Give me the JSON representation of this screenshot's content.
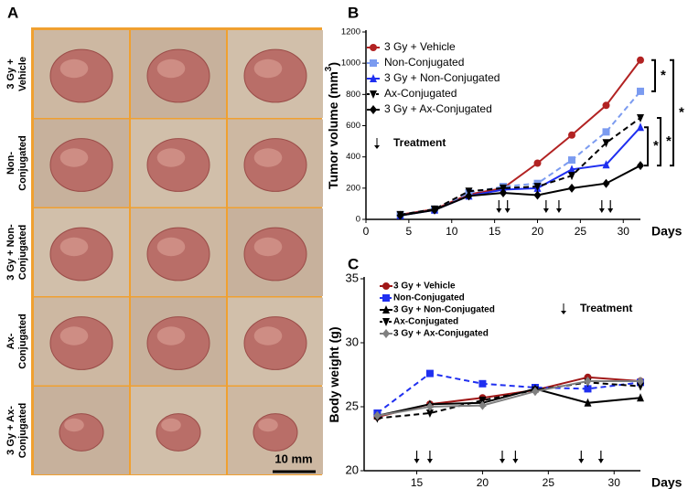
{
  "panel_a": {
    "label": "A",
    "row_labels": [
      [
        "3 Gy +",
        "Vehicle"
      ],
      [
        "Non-",
        "Conjugated"
      ],
      [
        "3 Gy + Non-",
        "Conjugated"
      ],
      [
        "Ax-",
        "Conjugated"
      ],
      [
        "3 Gy + Ax-",
        "Conjugated"
      ]
    ],
    "scale_bar": "10 mm"
  },
  "chart_data": [
    {
      "type": "line",
      "label": "B",
      "ylabel": [
        "Tumor volume (mm",
        "3",
        ")"
      ],
      "xlabel": "Days",
      "x": [
        4,
        8,
        12,
        16,
        20,
        24,
        28,
        32
      ],
      "xlim": [
        0,
        32
      ],
      "xticks": [
        0,
        5,
        10,
        15,
        20,
        25,
        30
      ],
      "ylim": [
        0,
        1200
      ],
      "yticks": [
        0,
        200,
        400,
        600,
        800,
        1000,
        1200
      ],
      "series": [
        {
          "name": "3 Gy + Vehicle",
          "color": "#b22222",
          "marker": "circle",
          "dashed": false,
          "values": [
            30,
            65,
            160,
            200,
            360,
            540,
            730,
            1020
          ]
        },
        {
          "name": "Non-Conjugated",
          "color": "#7b9bf0",
          "marker": "square",
          "dashed": true,
          "values": [
            30,
            65,
            170,
            210,
            230,
            380,
            560,
            820
          ]
        },
        {
          "name": "3 Gy + Non-Conjugated",
          "color": "#1f2ff0",
          "marker": "triangle",
          "dashed": false,
          "values": [
            25,
            60,
            150,
            190,
            200,
            320,
            350,
            590
          ]
        },
        {
          "name": "Ax-Conjugated",
          "color": "#000000",
          "marker": "triangle-down",
          "dashed": true,
          "values": [
            30,
            65,
            180,
            200,
            210,
            280,
            490,
            650
          ]
        },
        {
          "name": "3 Gy + Ax-Conjugated",
          "color": "#000000",
          "marker": "diamond",
          "dashed": false,
          "values": [
            25,
            60,
            150,
            170,
            155,
            200,
            230,
            345
          ]
        }
      ],
      "treatment_label": "Treatment",
      "treatment_days": [
        15.5,
        16.5,
        21,
        22.5,
        27.5,
        28.5
      ],
      "significance": [
        "*",
        "*",
        "*",
        "*"
      ]
    },
    {
      "type": "line",
      "label": "C",
      "ylabel": [
        "Body weight (g)"
      ],
      "xlabel": "Days",
      "x": [
        12,
        16,
        20,
        24,
        28,
        32
      ],
      "xlim": [
        11,
        32
      ],
      "xticks": [
        15,
        20,
        25,
        30
      ],
      "ylim": [
        20,
        35
      ],
      "yticks": [
        20,
        25,
        30,
        35
      ],
      "series": [
        {
          "name": "3 Gy + Vehicle",
          "color": "#a01818",
          "marker": "circle",
          "dashed": false,
          "values": [
            24.2,
            25.2,
            25.7,
            26.3,
            27.3,
            27.0
          ]
        },
        {
          "name": "Non-Conjugated",
          "color": "#1f2ff0",
          "marker": "square",
          "dashed": true,
          "values": [
            24.5,
            27.6,
            26.8,
            26.5,
            26.4,
            26.9
          ]
        },
        {
          "name": "3 Gy + Non-Conjugated",
          "color": "#000000",
          "marker": "triangle",
          "dashed": false,
          "values": [
            24.3,
            25.2,
            25.3,
            26.4,
            25.3,
            25.7
          ]
        },
        {
          "name": "Ax-Conjugated",
          "color": "#000000",
          "marker": "triangle-down",
          "dashed": true,
          "values": [
            24.1,
            24.5,
            25.5,
            26.3,
            26.9,
            26.6
          ]
        },
        {
          "name": "3 Gy + Ax-Conjugated",
          "color": "#808080",
          "marker": "diamond",
          "dashed": false,
          "values": [
            24.3,
            25.0,
            25.1,
            26.2,
            27.0,
            27.0
          ]
        }
      ],
      "treatment_label": "Treatment",
      "treatment_days": [
        15,
        16,
        21.5,
        22.5,
        27.5,
        29
      ]
    }
  ]
}
